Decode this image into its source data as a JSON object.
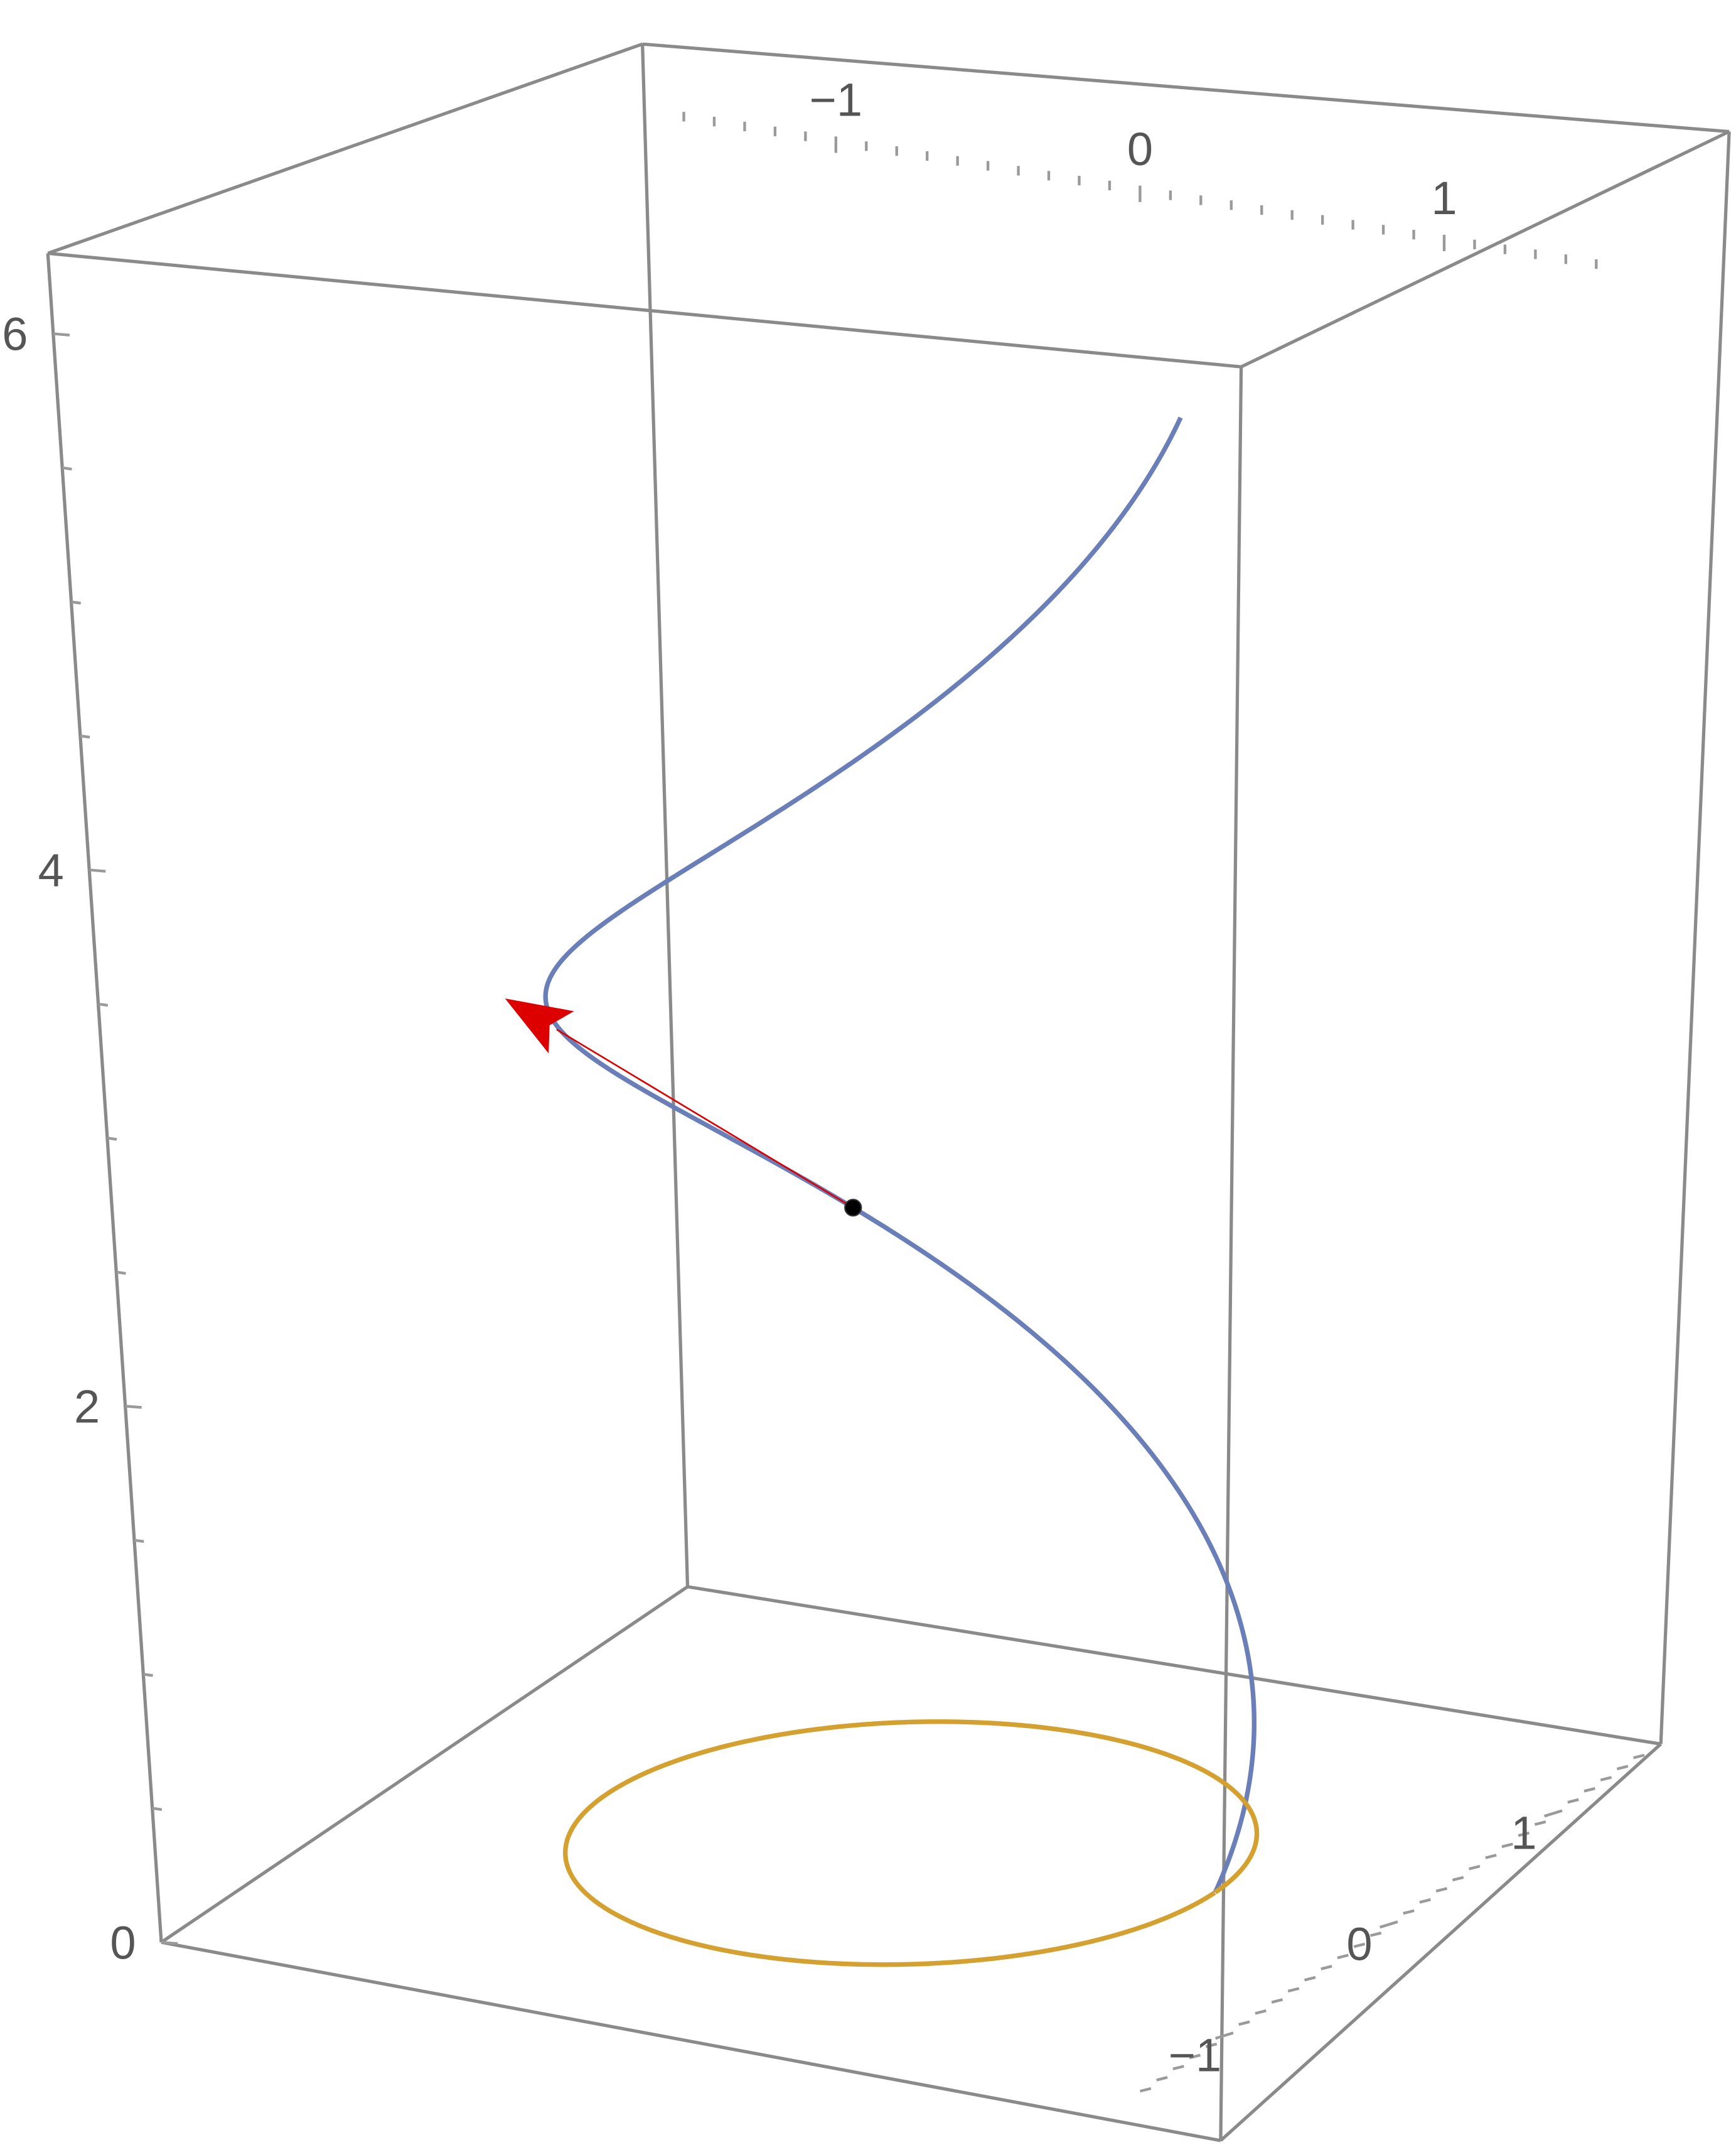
{
  "chart_data": {
    "type": "3d-line",
    "title": "",
    "xlabel": "",
    "ylabel": "",
    "zlabel": "",
    "axes": {
      "x": {
        "range": [
          -1.6,
          1.6
        ],
        "ticks": [
          -1,
          0,
          1
        ],
        "tick_labels": [
          "−1",
          "0",
          "1"
        ]
      },
      "y": {
        "range": [
          -1.6,
          1.6
        ],
        "ticks": [
          -1,
          0,
          1
        ],
        "tick_labels": [
          "−1",
          "0",
          "1"
        ]
      },
      "z": {
        "range": [
          0,
          6.3
        ],
        "ticks": [
          0,
          2,
          4,
          6
        ],
        "tick_labels": [
          "0",
          "2",
          "4",
          "6"
        ]
      }
    },
    "boxed": true,
    "grid": false,
    "series": [
      {
        "kind": "helix",
        "x": "cos(t)",
        "y": "sin(t)",
        "z": "t",
        "t_range": [
          0,
          6.28
        ],
        "color": "#6a7fb8"
      },
      {
        "kind": "circle",
        "x": "cos(t)",
        "y": "sin(t)",
        "z": "0",
        "t_range": [
          0,
          6.28
        ],
        "color": "#d4a030"
      }
    ],
    "point": {
      "t": 2.2,
      "color": "#000000"
    },
    "arrow": {
      "from_t": 2.2,
      "direction": [
        -0.808,
        -0.589,
        1.0
      ],
      "length": 1.0,
      "color": "#dd0000"
    }
  }
}
